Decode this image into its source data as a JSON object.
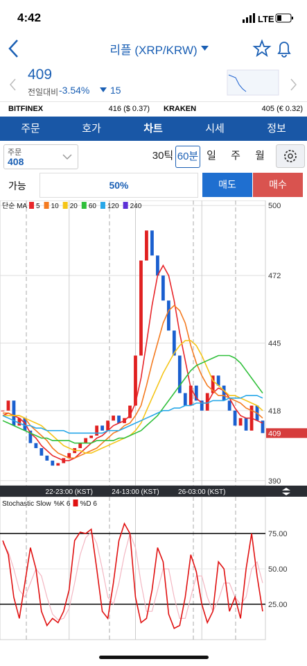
{
  "status_bar": {
    "time": "4:42",
    "network": "LTE"
  },
  "header": {
    "title": "리플 (XRP/KRW)"
  },
  "quote": {
    "price": "409",
    "change_label": "전일대비",
    "change_pct": "-3.54%",
    "change_abs": "15"
  },
  "exchanges": [
    {
      "name": "BITFINEX",
      "price": "416 ($ 0.37)"
    },
    {
      "name": "KRAKEN",
      "price": "405 (€ 0.32)"
    }
  ],
  "tabs": [
    "주문",
    "호가",
    "차트",
    "시세",
    "정보"
  ],
  "order": {
    "label": "주문",
    "value": "408"
  },
  "intervals": [
    "30틱",
    "60분",
    "일",
    "주",
    "월"
  ],
  "trade": {
    "available": "가능",
    "ratio": "50%",
    "sell": "매도",
    "buy": "매수"
  },
  "price_chart": {
    "type": "candlestick",
    "legend_title": "단순 MA",
    "up_color": "#e02020",
    "down_color": "#1a5fcf",
    "categories": [
      null,
      null,
      null,
      null,
      null,
      null,
      null,
      null,
      null,
      null,
      null,
      null,
      "22-23:00 (KST)",
      null,
      null,
      null,
      null,
      null,
      null,
      null,
      null,
      null,
      null,
      null,
      "24-13:00 (KST)",
      null,
      null,
      null,
      null,
      null,
      null,
      null,
      null,
      null,
      null,
      null,
      "26-03:00 (KST)",
      null,
      null,
      null,
      null,
      null,
      null,
      null,
      null,
      null,
      null,
      null
    ],
    "closes": [
      418,
      422,
      412,
      415,
      410,
      405,
      403,
      400,
      398,
      396,
      397,
      399,
      401,
      403,
      405,
      407,
      408,
      412,
      410,
      414,
      416,
      413,
      415,
      420,
      440,
      478,
      490,
      480,
      472,
      462,
      450,
      440,
      425,
      420,
      428,
      422,
      418,
      425,
      432,
      428,
      422,
      418,
      412,
      415,
      410,
      420,
      414,
      409
    ],
    "series": [
      {
        "name": "5",
        "color": "#e8262a",
        "values": [
          416,
          417,
          416,
          415,
          413,
          409,
          407,
          404,
          402,
          400,
          399,
          398,
          398,
          399,
          401,
          403,
          405,
          407,
          408,
          410,
          412,
          413,
          414,
          416,
          421,
          431,
          445,
          460,
          472,
          476,
          472,
          462,
          449,
          438,
          427,
          423,
          421,
          421,
          425,
          427,
          426,
          423,
          419,
          416,
          415,
          415,
          414,
          413
        ]
      },
      {
        "name": "10",
        "color": "#f47a1f",
        "values": [
          417,
          417,
          416,
          416,
          415,
          412,
          410,
          408,
          406,
          403,
          401,
          400,
          399,
          399,
          400,
          401,
          402,
          403,
          405,
          407,
          409,
          410,
          412,
          413,
          416,
          420,
          428,
          437,
          445,
          453,
          458,
          460,
          458,
          453,
          444,
          437,
          432,
          428,
          426,
          424,
          424,
          423,
          422,
          421,
          419,
          418,
          417,
          415
        ]
      },
      {
        "name": "20",
        "color": "#f5c518",
        "values": [
          416,
          416,
          416,
          416,
          415,
          414,
          413,
          412,
          410,
          408,
          406,
          404,
          403,
          402,
          402,
          401,
          401,
          402,
          403,
          404,
          405,
          406,
          407,
          408,
          410,
          413,
          418,
          423,
          428,
          433,
          437,
          441,
          444,
          446,
          446,
          444,
          440,
          435,
          430,
          428,
          426,
          424,
          424,
          423,
          422,
          421,
          420,
          418
        ]
      },
      {
        "name": "60",
        "color": "#2fbf3a",
        "values": [
          414,
          413,
          412,
          411,
          410,
          409,
          408,
          407,
          407,
          406,
          406,
          406,
          406,
          405,
          405,
          405,
          405,
          406,
          406,
          406,
          406,
          407,
          407,
          408,
          409,
          410,
          412,
          414,
          416,
          419,
          422,
          425,
          428,
          431,
          434,
          436,
          437,
          438,
          439,
          440,
          440,
          440,
          439,
          437,
          434,
          431,
          428,
          425
        ]
      },
      {
        "name": "120",
        "color": "#27a7e8",
        "values": [
          416,
          415,
          414,
          413,
          412,
          412,
          411,
          411,
          410,
          410,
          410,
          410,
          409,
          409,
          409,
          409,
          409,
          409,
          409,
          410,
          410,
          410,
          411,
          412,
          413,
          414,
          415,
          416,
          417,
          418,
          418,
          419,
          419,
          420,
          420,
          421,
          421,
          421,
          422,
          422,
          422,
          423,
          423,
          423,
          424,
          424,
          424,
          423
        ]
      },
      {
        "name": "240",
        "color": "#5b2fd6",
        "values": [
          null,
          null,
          null,
          null,
          null,
          null,
          null,
          null,
          null,
          null,
          null,
          null,
          null,
          null,
          null,
          null,
          null,
          null,
          null,
          null,
          null,
          null,
          null,
          null,
          null,
          null,
          null,
          null,
          null,
          null,
          null,
          null,
          null,
          null,
          null,
          null,
          null,
          null,
          null,
          null,
          null,
          null,
          null,
          null,
          null,
          null,
          null,
          null
        ]
      }
    ],
    "ylim": [
      388,
      502
    ],
    "yticks": [
      390,
      418,
      445,
      472,
      500
    ],
    "last_price": 409,
    "grid": true
  },
  "stoch_chart": {
    "type": "line",
    "title": "Stochastic Slow",
    "series": [
      {
        "name": "%K 6",
        "color": "#e01010",
        "values": [
          70,
          60,
          30,
          15,
          40,
          65,
          50,
          20,
          10,
          15,
          12,
          20,
          35,
          70,
          76,
          75,
          78,
          50,
          20,
          15,
          40,
          70,
          82,
          75,
          30,
          12,
          15,
          35,
          65,
          55,
          18,
          8,
          10,
          30,
          60,
          48,
          25,
          12,
          20,
          55,
          50,
          20,
          30,
          15,
          50,
          75,
          45,
          20
        ]
      },
      {
        "name": "%D 6",
        "color": "#f3b6c2",
        "values": [
          68,
          62,
          50,
          35,
          30,
          40,
          50,
          45,
          30,
          18,
          14,
          15,
          22,
          40,
          60,
          72,
          76,
          68,
          50,
          30,
          25,
          40,
          60,
          75,
          65,
          40,
          20,
          20,
          35,
          50,
          50,
          30,
          15,
          15,
          30,
          45,
          45,
          30,
          20,
          28,
          40,
          40,
          30,
          25,
          30,
          50,
          55,
          40
        ]
      }
    ],
    "ylim": [
      0,
      100
    ],
    "yticks": [
      {
        "value": 25,
        "label": "25.00"
      },
      {
        "value": 50,
        "label": "50.00"
      },
      {
        "value": 75,
        "label": "75.00"
      }
    ],
    "reference_lines": [
      25,
      75
    ]
  }
}
